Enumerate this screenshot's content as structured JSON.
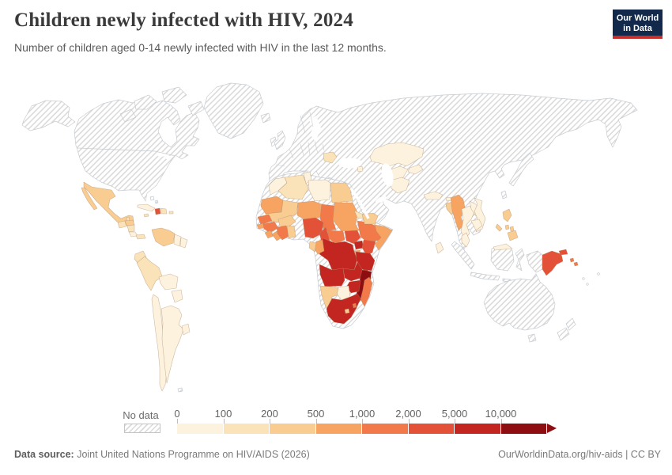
{
  "header": {
    "title": "Children newly infected with HIV, 2024",
    "subtitle": "Number of children aged 0-14 newly infected with HIV in the last 12 months.",
    "logo": {
      "line1": "Our World",
      "line2": "in Data",
      "bg": "#12294b",
      "bar": "#c62f2a"
    }
  },
  "legend": {
    "no_data_label": "No data",
    "tick_labels": [
      "0",
      "100",
      "200",
      "500",
      "1,000",
      "2,000",
      "5,000",
      "10,000"
    ],
    "hatch_color": "#d9d9d9"
  },
  "footer": {
    "source_label": "Data source:",
    "source_text": " Joint United Nations Programme on HIV/AIDS (2026)",
    "right_text": "OurWorldinData.org/hiv-aids | CC BY"
  },
  "chart_data": {
    "type": "choropleth",
    "title": "Children newly infected with HIV, 2024",
    "unit": "children aged 0-14 newly infected with HIV in the last 12 months",
    "bin_edges": [
      "0",
      "100",
      "200",
      "500",
      "1,000",
      "2,000",
      "5,000",
      "10,000"
    ],
    "bin_ranges": [
      "0-100",
      "100-200",
      "200-500",
      "500-1,000",
      "1,000-2,000",
      "2,000-5,000",
      "5,000-10,000",
      "10,000+"
    ],
    "bin_colors": [
      "#fdf2de",
      "#fbe3b9",
      "#f9cc92",
      "#f7a463",
      "#f2794a",
      "#e35238",
      "#c32521",
      "#8e0d10"
    ],
    "no_data_regions": [
      "United States",
      "Canada",
      "Greenland",
      "Brazil",
      "Colombia",
      "French Guiana",
      "Europe (most countries)",
      "Russia",
      "China",
      "Mongolia",
      "Japan",
      "South Korea",
      "North Korea",
      "India",
      "Pakistan",
      "Iran",
      "Turkey",
      "Saudi Arabia",
      "Oman",
      "Indonesia",
      "Australia",
      "New Zealand",
      "Western Sahara",
      "Togo",
      "Benin",
      "United Kingdom",
      "Ireland",
      "Iceland"
    ],
    "region_bins": {
      "mexico": 2,
      "guatemala": 1,
      "belize": 1,
      "honduras": 2,
      "nicaragua": 1,
      "costa-rica": 0,
      "panama": 1,
      "cuba": 0,
      "jamaica": 1,
      "haiti": 5,
      "dominican-republic": 1,
      "puerto-rico": 1,
      "venezuela": 2,
      "guyana": 0,
      "suriname": 0,
      "ecuador": 1,
      "peru": 1,
      "bolivia": 0,
      "paraguay": 0,
      "chile": 0,
      "argentina": 0,
      "uruguay": 0,
      "morocco": 0,
      "algeria": 1,
      "tunisia": 0,
      "libya": 0,
      "egypt": 2,
      "mauritania": 3,
      "mali": 2,
      "burkina-faso": 2,
      "niger": 3,
      "chad": 4,
      "sudan": 3,
      "eritrea": 1,
      "djibouti": 2,
      "senegal": 4,
      "guinea-bissau": 3,
      "guinea": 4,
      "sierra-leone": 3,
      "liberia": 3,
      "cote-divoire": 4,
      "ghana": 2,
      "nigeria": 5,
      "cameroon": 5,
      "central-african-republic": 4,
      "south-sudan": 5,
      "ethiopia": 4,
      "somalia": 3,
      "uganda": 6,
      "kenya": 5,
      "rwanda-burundi": 3,
      "democratic-republic-of-congo": 6,
      "congo": 3,
      "gabon": 2,
      "angola": 6,
      "zambia": 6,
      "malawi": 6,
      "tanzania": 6,
      "mozambique": 7,
      "zimbabwe": 6,
      "botswana": 0,
      "namibia": 2,
      "south-africa": 6,
      "lesotho": 2,
      "eswatini": 4,
      "madagascar": 4,
      "yemen": 2,
      "romania": 1,
      "armenia": 0,
      "kazakhstan": 0,
      "uzbekistan-turkmenistan": 0,
      "kyrgyzstan-tajikistan": 0,
      "afghanistan": 0,
      "nepal": 0,
      "bhutan": 0,
      "bangladesh": 2,
      "myanmar": 3,
      "thailand": 0,
      "laos": 0,
      "vietnam": 0,
      "cambodia": 0,
      "malaysia": 0,
      "sri-lanka": 0,
      "philippines": 2,
      "papua-new-guinea": 5,
      "solomon-islands": 4
    }
  }
}
